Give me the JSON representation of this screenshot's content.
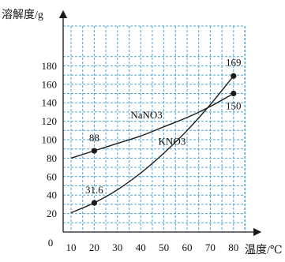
{
  "chart_data": {
    "type": "line",
    "ylabel": "溶解度/g",
    "xlabel": "温度/℃",
    "x_ticks": [
      10,
      20,
      30,
      40,
      50,
      60,
      70,
      80
    ],
    "y_ticks": [
      0,
      20,
      40,
      60,
      80,
      100,
      120,
      140,
      160,
      180
    ],
    "xlim": [
      10,
      85
    ],
    "ylim": [
      0,
      190
    ],
    "grid": true,
    "colors": {
      "grid": "#4da6d9",
      "line": "#1a1a1a",
      "axis": "#1a1a1a"
    },
    "series": [
      {
        "name": "NaNO3",
        "x": [
          10,
          20,
          30,
          40,
          50,
          60,
          70,
          80
        ],
        "y": [
          80,
          88,
          96,
          104,
          114,
          124,
          136,
          150
        ]
      },
      {
        "name": "KNO3",
        "x": [
          10,
          20,
          30,
          40,
          50,
          60,
          70,
          80
        ],
        "y": [
          20.9,
          31.6,
          45.8,
          63.9,
          85.5,
          110,
          138,
          169
        ]
      }
    ],
    "points": [
      {
        "x": 20,
        "y": 88,
        "label": "88"
      },
      {
        "x": 20,
        "y": 31.6,
        "label": "31.6"
      },
      {
        "x": 80,
        "y": 169,
        "label": "169"
      },
      {
        "x": 80,
        "y": 150,
        "label": "150"
      }
    ]
  }
}
